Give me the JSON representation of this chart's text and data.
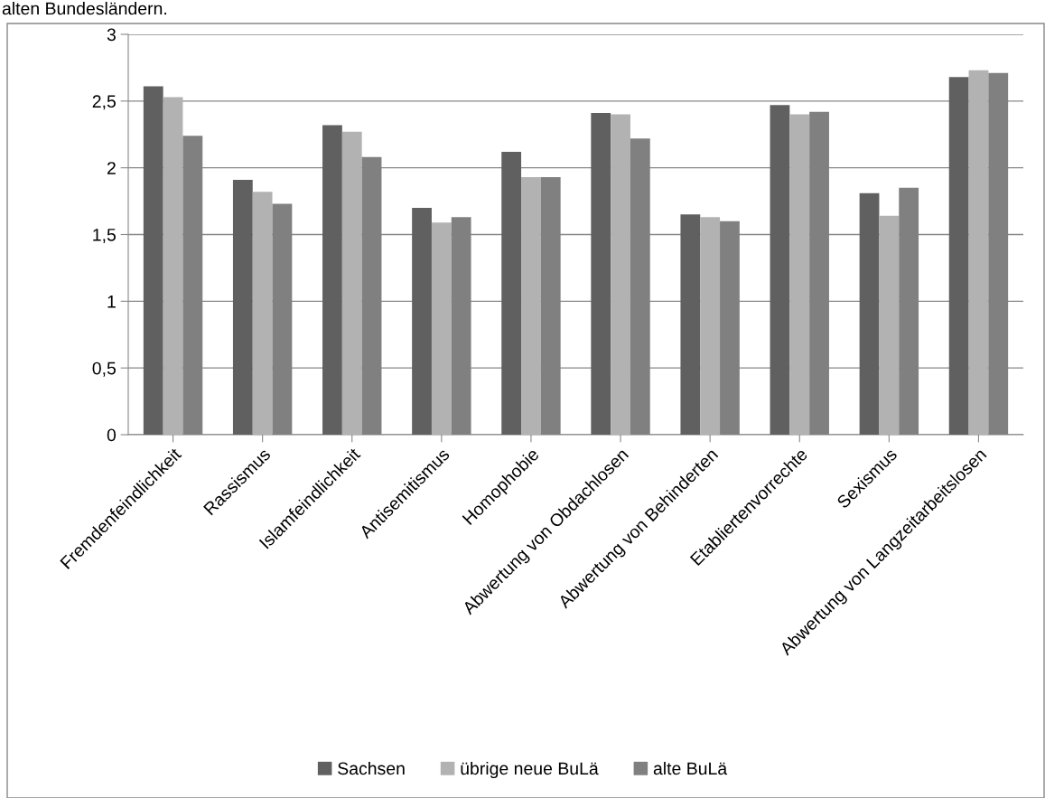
{
  "chart_data": {
    "type": "bar",
    "title": "alten Bundesländern.",
    "categories": [
      "Fremdenfeindlichkeit",
      "Rassismus",
      "Islamfeindlichkeit",
      "Antisemitismus",
      "Homophobie",
      "Abwertung von Obdachlosen",
      "Abwertung von Behinderten",
      "Etabliertenvorrechte",
      "Sexismus",
      "Abwertung von Langzeitarbeitslosen"
    ],
    "series": [
      {
        "name": "Sachsen",
        "color": "#606060",
        "values": [
          2.61,
          1.91,
          2.32,
          1.7,
          2.12,
          2.41,
          1.65,
          2.47,
          1.81,
          2.68
        ]
      },
      {
        "name": "übrige neue BuLä",
        "color": "#b2b2b2",
        "values": [
          2.53,
          1.82,
          2.27,
          1.59,
          1.93,
          2.4,
          1.63,
          2.4,
          1.64,
          2.73
        ]
      },
      {
        "name": "alte BuLä",
        "color": "#808080",
        "values": [
          2.24,
          1.73,
          2.08,
          1.63,
          1.93,
          2.22,
          1.6,
          2.42,
          1.85,
          2.71
        ]
      }
    ],
    "ylim": [
      0,
      3
    ],
    "yticks": [
      {
        "value": 0,
        "label": "0"
      },
      {
        "value": 0.5,
        "label": "0,5"
      },
      {
        "value": 1,
        "label": "1"
      },
      {
        "value": 1.5,
        "label": "1,5"
      },
      {
        "value": 2,
        "label": "2"
      },
      {
        "value": 2.5,
        "label": "2,5"
      },
      {
        "value": 3,
        "label": "3"
      }
    ],
    "grid": "y",
    "legend": "bottom"
  }
}
